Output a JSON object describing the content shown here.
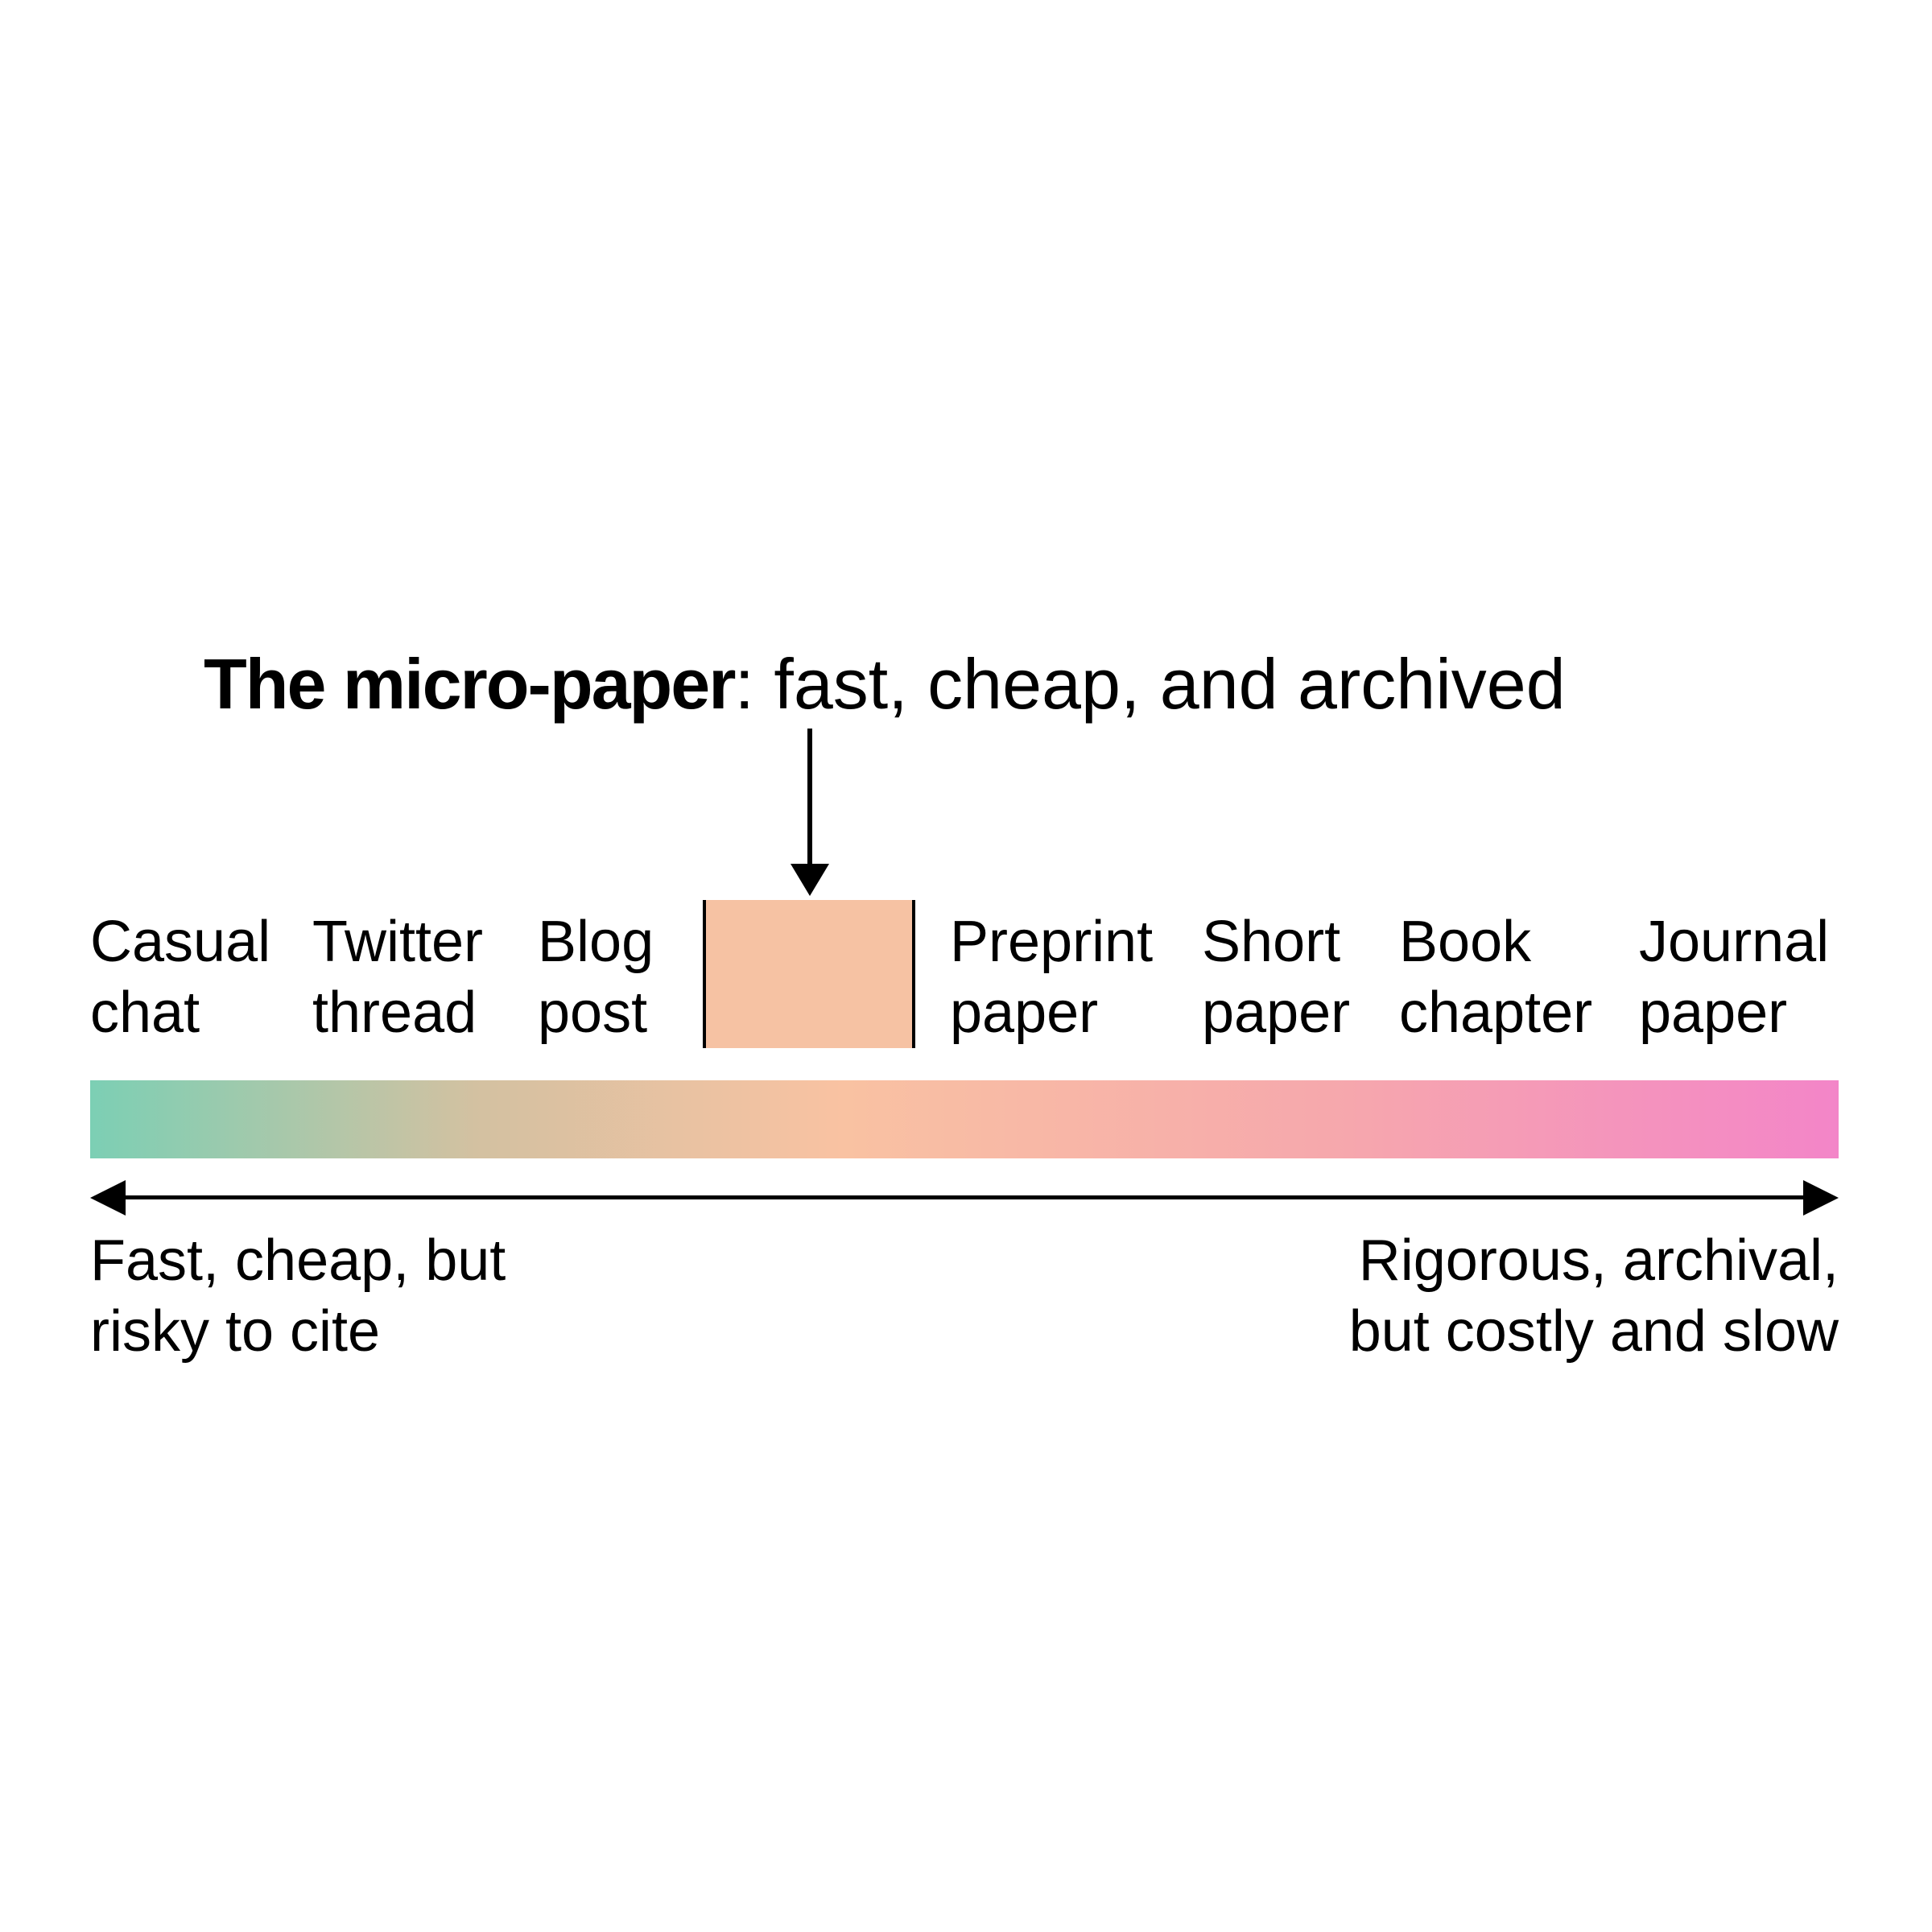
{
  "title": {
    "bold": "The micro-paper",
    "rest": ": fast, cheap, and archived"
  },
  "media": [
    {
      "line1": "Casual",
      "line2": "chat"
    },
    {
      "line1": "Twitter",
      "line2": "thread"
    },
    {
      "line1": "Blog",
      "line2": "post"
    },
    {
      "line1": "Preprint",
      "line2": "paper"
    },
    {
      "line1": "Short",
      "line2": "paper"
    },
    {
      "line1": "Book",
      "line2": "chapter"
    },
    {
      "line1": "Journal",
      "line2": "paper"
    }
  ],
  "axis": {
    "left": {
      "line1": "Fast, cheap, but",
      "line2": "risky to cite"
    },
    "right": {
      "line1": "Rigorous, archival,",
      "line2": "but costly and slow"
    }
  },
  "colors": {
    "gradient_start": "#7ccfb4",
    "gradient_mid1": "#d3c1a1",
    "gradient_mid2": "#f9c2a2",
    "gradient_mid3": "#f6a7ad",
    "gradient_end": "#f385c8",
    "slot_fill": "#f6c2a3"
  }
}
